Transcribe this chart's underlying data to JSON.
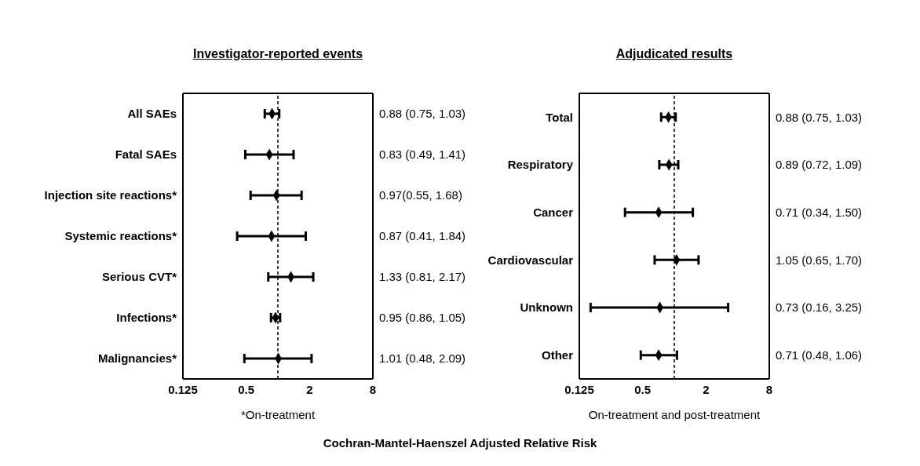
{
  "chart_data": [
    {
      "type": "scatter",
      "title": "Investigator-reported events",
      "orientation": "horizontal",
      "log": "x",
      "marker": "diamond",
      "color": "#000000",
      "xlabel": "*On-treatment",
      "xlim": [
        0.125,
        8
      ],
      "xticks": [
        0.125,
        0.5,
        2,
        8
      ],
      "grid": false,
      "legend": false,
      "categories": [
        "All SAEs",
        "Fatal SAEs",
        "Injection site reactions*",
        "Systemic reactions*",
        "Serious CVT*",
        "Infections*",
        "Malignancies*"
      ],
      "values": [
        0.88,
        0.83,
        0.97,
        0.87,
        1.33,
        0.95,
        1.01
      ],
      "errors": [
        [
          0.75,
          1.03
        ],
        [
          0.49,
          1.41
        ],
        [
          0.55,
          1.68
        ],
        [
          0.41,
          1.84
        ],
        [
          0.81,
          2.17
        ],
        [
          0.86,
          1.05
        ],
        [
          0.48,
          2.09
        ]
      ],
      "value_labels": [
        "0.88 (0.75, 1.03)",
        "0.83 (0.49, 1.41)",
        "0.97(0.55, 1.68)",
        "0.87 (0.41, 1.84)",
        "1.33 (0.81, 2.17)",
        "0.95 (0.86, 1.05)",
        "1.01 (0.48, 2.09)"
      ],
      "ref_lines": [
        {
          "axis": "x",
          "value": 1,
          "line_style": "dashed"
        }
      ]
    },
    {
      "type": "scatter",
      "title": "Adjudicated results",
      "orientation": "horizontal",
      "log": "x",
      "marker": "diamond",
      "color": "#000000",
      "xlabel": "On-treatment  and post-treatment",
      "xlim": [
        0.125,
        8
      ],
      "xticks": [
        0.125,
        0.5,
        2,
        8
      ],
      "grid": false,
      "legend": false,
      "categories": [
        "Total",
        "Respiratory",
        "Cancer",
        "Cardiovascular",
        "Unknown",
        "Other"
      ],
      "values": [
        0.88,
        0.89,
        0.71,
        1.05,
        0.73,
        0.71
      ],
      "errors": [
        [
          0.75,
          1.03
        ],
        [
          0.72,
          1.09
        ],
        [
          0.34,
          1.5
        ],
        [
          0.65,
          1.7
        ],
        [
          0.16,
          3.25
        ],
        [
          0.48,
          1.06
        ]
      ],
      "value_labels": [
        "0.88 (0.75, 1.03)",
        "0.89 (0.72, 1.09)",
        "0.71 (0.34, 1.50)",
        "1.05 (0.65, 1.70)",
        "0.73 (0.16, 3.25)",
        "0.71 (0.48, 1.06)"
      ],
      "ref_lines": [
        {
          "axis": "x",
          "value": 1,
          "line_style": "dashed"
        }
      ],
      "annotations": [
        "Cochran-Mantel-Haenszel Adjusted Relative Risk"
      ]
    }
  ]
}
